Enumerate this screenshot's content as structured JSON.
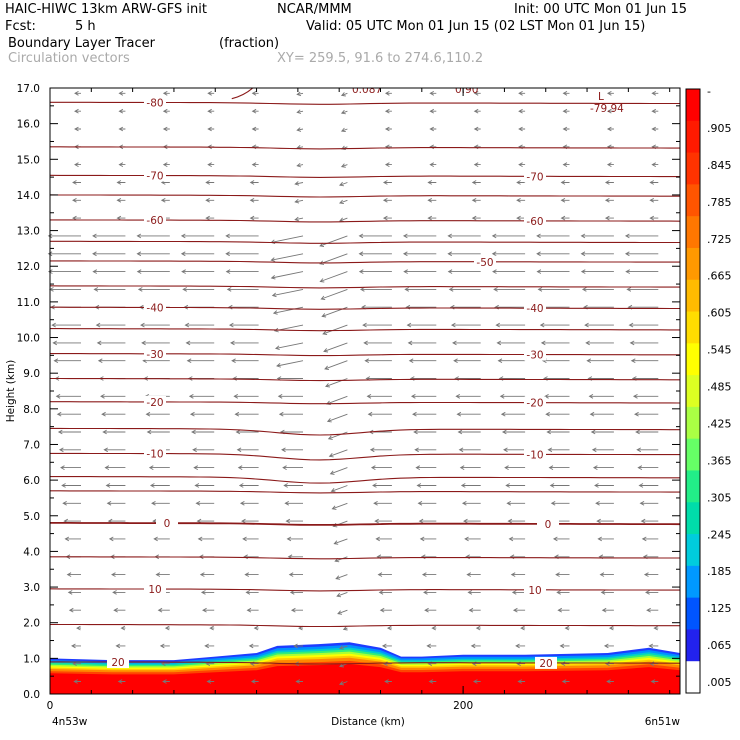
{
  "header": {
    "model": "HAIC-HIWC 13km ARW-GFS init",
    "org": "NCAR/MMM",
    "init": "Init: 00 UTC Mon 01 Jun 15",
    "fcst_label": "Fcst:",
    "fcst_value": "5 h",
    "valid": "Valid: 05 UTC Mon 01 Jun 15 (02 LST Mon 01 Jun 15)",
    "field_name": "Boundary Layer Tracer",
    "field_units": "(fraction)",
    "vectors_label": "Circulation vectors",
    "xy": "XY= 259.5, 91.6 to 274.6,110.2"
  },
  "chart_data": {
    "type": "heatmap",
    "xlabel": "Distance (km)",
    "ylabel": "Height (km)",
    "xlim": [
      0,
      305
    ],
    "ylim": [
      0,
      17
    ],
    "x_ticks": [
      "0",
      "200"
    ],
    "y_ticks": [
      "0.0",
      "1.0",
      "2.0",
      "3.0",
      "4.0",
      "5.0",
      "6.0",
      "7.0",
      "8.0",
      "9.0",
      "10.0",
      "11.0",
      "12.0",
      "13.0",
      "14.0",
      "15.0",
      "16.0",
      "17.0"
    ],
    "x_endpoints": {
      "left": "4n53w",
      "right": "6n51w"
    },
    "colorbar": {
      "labels": [
        "-",
        ".905",
        ".845",
        ".785",
        ".725",
        ".665",
        ".605",
        ".545",
        ".485",
        ".425",
        ".365",
        ".305",
        ".245",
        ".185",
        ".125",
        ".065",
        ".005"
      ],
      "colors": [
        "#ff0000",
        "#ff1a00",
        "#ff3300",
        "#ff5500",
        "#ff7700",
        "#ff9900",
        "#ffbb00",
        "#ffdd00",
        "#ffff00",
        "#ddff22",
        "#aaff44",
        "#66ff66",
        "#22ee88",
        "#00ddaa",
        "#00ccdd",
        "#0099ff",
        "#0055ff",
        "#2222ee",
        "#ffffff"
      ]
    },
    "temperature_contours": {
      "units": "°C",
      "levels": [
        {
          "value": -80,
          "label": "-80",
          "height": 16.6,
          "label_pos": "left"
        },
        {
          "value": -70,
          "label": "-70",
          "height": 14.55,
          "label_pos": "both"
        },
        {
          "value": -60,
          "label": "-60",
          "height": 13.3,
          "label_pos": "both"
        },
        {
          "value": -50,
          "label": "-50",
          "height": 12.15,
          "label_pos": "right"
        },
        {
          "value": -40,
          "label": "-40",
          "height": 10.85,
          "label_pos": "both"
        },
        {
          "value": -30,
          "label": "-30",
          "height": 9.55,
          "label_pos": "both"
        },
        {
          "value": -20,
          "label": "-20",
          "height": 8.2,
          "label_pos": "both"
        },
        {
          "value": -10,
          "label": "-10",
          "height": 6.75,
          "label_pos": "both"
        },
        {
          "value": 0,
          "label": "0",
          "height": 4.8,
          "label_pos": "both"
        },
        {
          "value": 10,
          "label": "10",
          "height": 2.95,
          "label_pos": "both"
        },
        {
          "value": 20,
          "label": "20",
          "height": 0.9,
          "label_pos": "both"
        }
      ],
      "extra_lines": [
        15.35,
        14.0,
        12.7,
        11.45,
        10.25,
        8.85,
        7.45,
        6.1,
        5.7,
        3.85,
        1.95
      ],
      "min_label": "L",
      "min_value": "-79.94",
      "top_labels": [
        "0.087",
        "0.90"
      ]
    },
    "tracer_layer": {
      "description_units": "fraction",
      "top_height_km": [
        [
          0,
          1.0
        ],
        [
          30,
          0.95
        ],
        [
          60,
          0.95
        ],
        [
          80,
          1.05
        ],
        [
          100,
          1.15
        ],
        [
          110,
          1.35
        ],
        [
          130,
          1.4
        ],
        [
          145,
          1.45
        ],
        [
          160,
          1.3
        ],
        [
          170,
          1.05
        ],
        [
          180,
          1.05
        ],
        [
          200,
          1.1
        ],
        [
          230,
          1.1
        ],
        [
          270,
          1.15
        ],
        [
          290,
          1.3
        ],
        [
          305,
          1.15
        ]
      ]
    }
  }
}
